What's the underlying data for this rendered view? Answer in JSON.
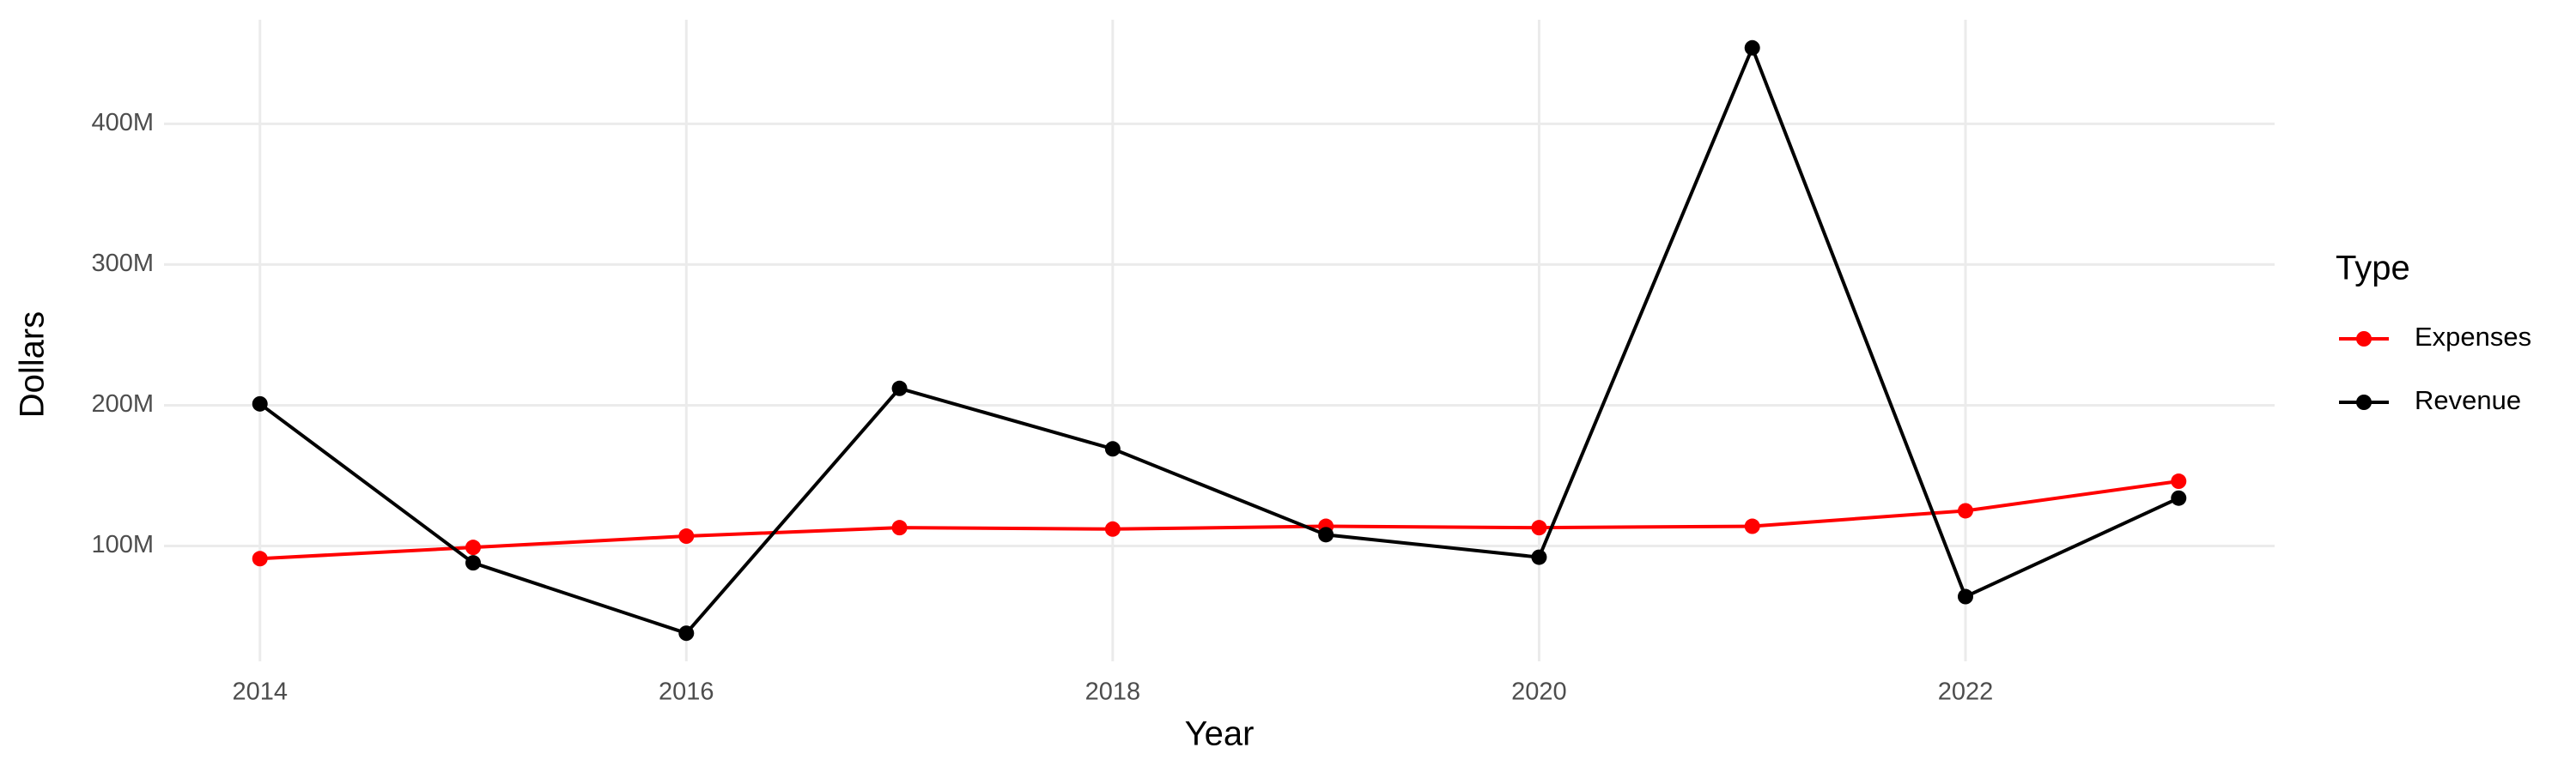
{
  "chart_data": {
    "type": "line",
    "x_label": "Year",
    "y_label": "Dollars",
    "x": [
      2014,
      2015,
      2016,
      2017,
      2018,
      2019,
      2020,
      2021,
      2022,
      2023
    ],
    "series": [
      {
        "name": "Expenses",
        "color": "#ff0000",
        "values": [
          91000000,
          99000000,
          107000000,
          113000000,
          112000000,
          114000000,
          113000000,
          114000000,
          125000000,
          146000000
        ]
      },
      {
        "name": "Revenue",
        "color": "#000000",
        "values": [
          201000000,
          88000000,
          38000000,
          212000000,
          169000000,
          108000000,
          92000000,
          454000000,
          64000000,
          134000000
        ]
      }
    ],
    "xlim": [
      2013.55,
      2023.45
    ],
    "xticks": [
      2014,
      2016,
      2018,
      2020,
      2022
    ],
    "ylim": [
      18000000,
      474000000
    ],
    "yticks": [
      {
        "value": 100000000,
        "label": "100M"
      },
      {
        "value": 200000000,
        "label": "200M"
      },
      {
        "value": 300000000,
        "label": "300M"
      },
      {
        "value": 400000000,
        "label": "400M"
      }
    ],
    "grid": true,
    "legend_title": "Type",
    "legend_position": "right"
  }
}
